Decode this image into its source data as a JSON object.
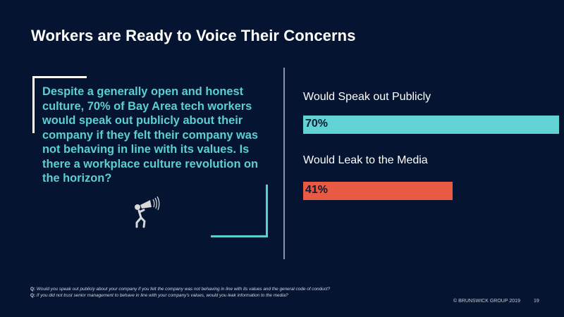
{
  "title": "Workers are Ready to Voice Their Concerns",
  "quote": "Despite a generally open and honest culture, 70% of Bay Area tech workers would speak out publicly about their company if they felt their company was not behaving in line with its values. Is there a workplace culture revolution on the horizon?",
  "icon": "person-megaphone-icon",
  "chart_data": {
    "type": "bar",
    "orientation": "horizontal",
    "title": "",
    "xlabel": "",
    "ylabel": "",
    "xlim": [
      0,
      100
    ],
    "grid": false,
    "categories": [
      "Would Speak out Publicly",
      "Would Leak to the Media"
    ],
    "values": [
      70,
      41
    ],
    "value_labels": [
      "70%",
      "41%"
    ],
    "colors": [
      "#62d3d5",
      "#e85a44"
    ]
  },
  "footnotes": [
    {
      "prefix": "Q:",
      "text": " Would you speak out publicly about your company if you felt the company was not behaving in line with its values and the general code of conduct?"
    },
    {
      "prefix": "Q:",
      "text": " If you did not trust senior management to behave in line with your company's values, would you leak information to the media?"
    }
  ],
  "footer": {
    "copyright": "© BRUNSWICK GROUP 2019",
    "page_number": "19"
  }
}
